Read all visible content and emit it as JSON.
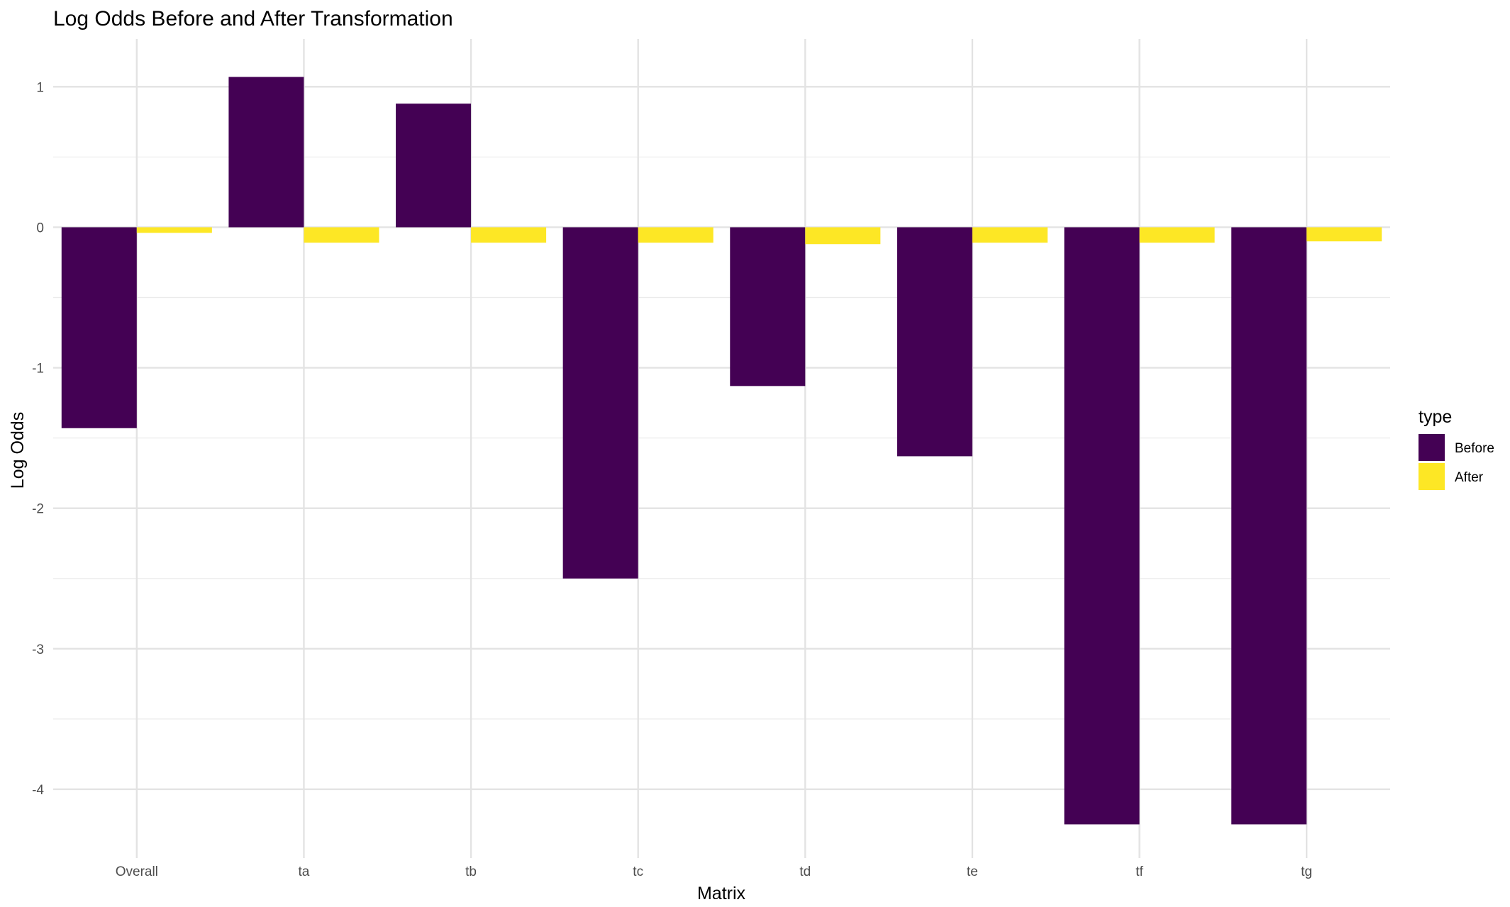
{
  "chart_data": {
    "type": "bar",
    "title": "Log Odds Before and After Transformation",
    "xlabel": "Matrix",
    "ylabel": "Log Odds",
    "categories": [
      "Overall",
      "ta",
      "tb",
      "tc",
      "td",
      "te",
      "tf",
      "tg"
    ],
    "series": [
      {
        "name": "Before",
        "color": "#440154",
        "values": [
          -1.43,
          1.07,
          0.88,
          -2.5,
          -1.13,
          -1.63,
          -4.25,
          -4.25
        ]
      },
      {
        "name": "After",
        "color": "#FDE725",
        "values": [
          -0.04,
          -0.11,
          -0.11,
          -0.11,
          -0.12,
          -0.11,
          -0.11,
          -0.1
        ]
      }
    ],
    "ylim": [
      -4.49,
      1.34
    ],
    "yticks": [
      1,
      0,
      -1,
      -2,
      -3,
      -4
    ],
    "ytick_labels": [
      "1",
      "0",
      "-1",
      "-2",
      "-3",
      "-4"
    ],
    "legend": {
      "title": "type",
      "position": "right"
    },
    "grid": true
  }
}
